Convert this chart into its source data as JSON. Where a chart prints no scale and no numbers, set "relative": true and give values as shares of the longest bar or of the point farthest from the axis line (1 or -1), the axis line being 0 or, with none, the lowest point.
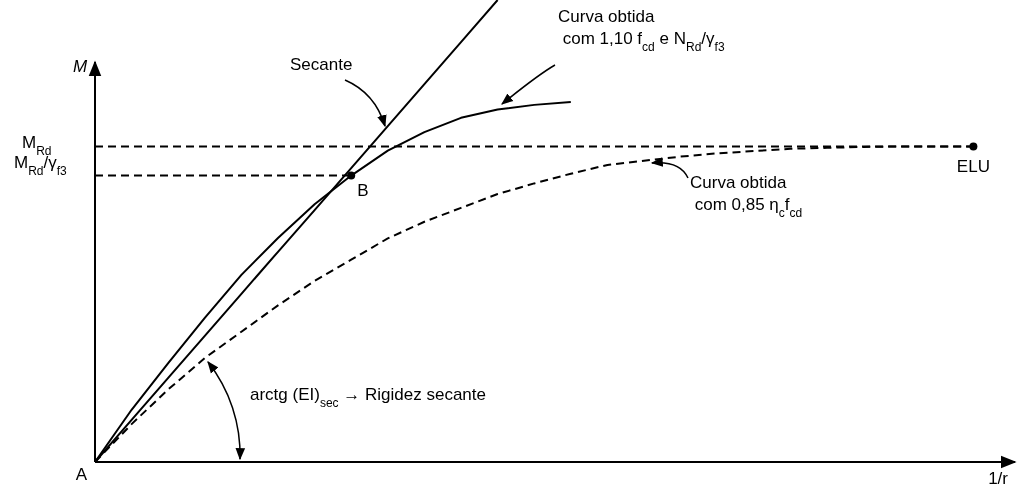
{
  "chart_data": {
    "type": "line",
    "relative": true,
    "xlabel": "1/r",
    "ylabel": "M",
    "categories": [
      null,
      null,
      null,
      null,
      null,
      null,
      null,
      null,
      null,
      null,
      null,
      null,
      null,
      null,
      null,
      null,
      null,
      null,
      null,
      null,
      null,
      null,
      null,
      null,
      null,
      null
    ],
    "series": [
      {
        "color": "#000000",
        "line_style": "solid",
        "values": [
          0,
          0.091,
          0.182,
          0.273,
          0.364,
          0.455,
          0.545,
          0.636,
          0.727,
          0.818,
          0.909,
          1,
          null,
          null,
          null,
          null,
          null,
          null,
          null,
          null,
          null,
          null,
          null,
          null,
          null,
          null
        ]
      },
      {
        "color": "#000000",
        "line_style": "solid",
        "values": [
          0,
          0.113,
          0.214,
          0.312,
          0.405,
          0.485,
          0.558,
          0.62,
          0.674,
          0.714,
          0.745,
          0.763,
          0.773,
          0.779,
          null,
          null,
          null,
          null,
          null,
          null,
          null,
          null,
          null,
          null,
          null,
          null
        ]
      },
      {
        "color": "#000000",
        "line_style": "dashed",
        "values": [
          0,
          0.082,
          0.157,
          0.225,
          0.282,
          0.339,
          0.392,
          0.438,
          0.484,
          0.52,
          0.55,
          0.58,
          0.603,
          0.624,
          0.643,
          0.652,
          0.661,
          0.668,
          0.673,
          0.678,
          0.68,
          0.682,
          0.683,
          0.683,
          0.683,
          null
        ]
      },
      {
        "color": "#000000",
        "line_style": "dashed",
        "values": [
          0.683,
          0.683,
          0.683,
          0.683,
          0.683,
          0.683,
          0.683,
          0.683,
          0.683,
          0.683,
          0.683,
          0.683,
          0.683,
          0.683,
          0.683,
          0.683,
          0.683,
          0.683,
          0.683,
          0.683,
          0.683,
          0.683,
          0.683,
          0.683,
          0.683,
          null
        ]
      },
      {
        "color": "#000000",
        "line_style": "dashed",
        "values": [
          0.62,
          0.62,
          0.62,
          0.62,
          0.62,
          0.62,
          0.62,
          0.62,
          null,
          null,
          null,
          null,
          null,
          null,
          null,
          null,
          null,
          null,
          null,
          null,
          null,
          null,
          null,
          null,
          null,
          null
        ]
      }
    ],
    "annotations": [
      "A",
      "B",
      "ELU",
      "M$_{Rd}$",
      "M$_{Rd}$/γ$_{f3}$",
      "Secante",
      "Curva obtida com 1,10 f$_{cd}$ e N$_{Rd}$/γ$_{f3}$",
      "Curva obtida com 0,85 η$_{c}$f$_{cd}$",
      "arctg (EI)$_{sec}$ → Rigidez secante"
    ]
  }
}
